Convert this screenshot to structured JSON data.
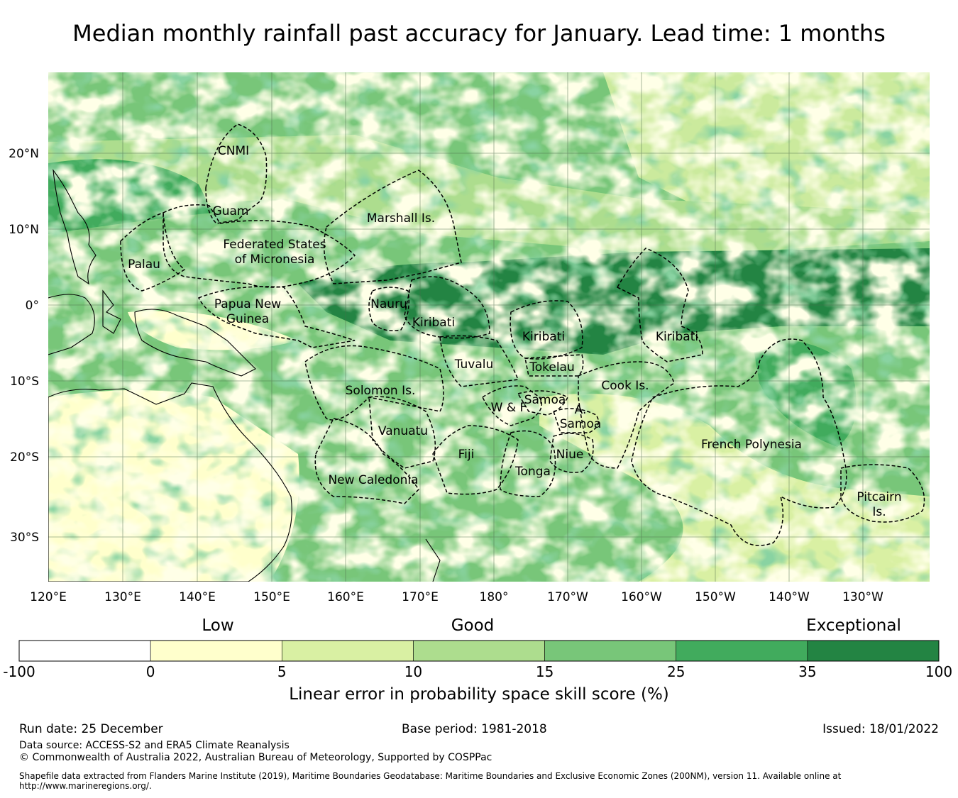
{
  "title": "Median monthly rainfall past accuracy for January. Lead time: 1 months",
  "colors": {
    "ocean_base": "#74c476",
    "bin_0": "#ffffff",
    "bin_1": "#ffffcc",
    "bin_2": "#d9f0a3",
    "bin_3": "#addd8e",
    "bin_4": "#78c679",
    "bin_5": "#41ab5d",
    "bin_6": "#238443",
    "land": "#000000",
    "boundary": "#000000",
    "grid": "#4d6b4d"
  },
  "map": {
    "lat_labels": [
      "20°N",
      "10°N",
      "0°",
      "10°S",
      "20°S",
      "30°S"
    ],
    "lon_labels": [
      "120°E",
      "130°E",
      "140°E",
      "150°E",
      "160°E",
      "170°E",
      "180°",
      "170°W",
      "160°W",
      "150°W",
      "140°W",
      "130°W"
    ],
    "regions": [
      {
        "name": "CNMI"
      },
      {
        "name": "Guam"
      },
      {
        "name": "Marshall Is."
      },
      {
        "name": "Federated States"
      },
      {
        "name": "of Micronesia"
      },
      {
        "name": "Palau"
      },
      {
        "name": "Papua New"
      },
      {
        "name": "Guinea"
      },
      {
        "name": "Nauru"
      },
      {
        "name": "Kiribati"
      },
      {
        "name": "Kiribati"
      },
      {
        "name": "Kiribati"
      },
      {
        "name": "Tuvalu"
      },
      {
        "name": "Tokelau"
      },
      {
        "name": "Solomon Is."
      },
      {
        "name": "Cook Is."
      },
      {
        "name": "Samoa"
      },
      {
        "name": "W & F"
      },
      {
        "name": "A."
      },
      {
        "name": "Samoa"
      },
      {
        "name": "Vanuatu"
      },
      {
        "name": "Fiji"
      },
      {
        "name": "Niue"
      },
      {
        "name": "Tonga"
      },
      {
        "name": "French Polynesia"
      },
      {
        "name": "New Caledonia"
      },
      {
        "name": "Pitcairn"
      },
      {
        "name": "Is."
      }
    ]
  },
  "colorbar": {
    "categories": [
      "Low",
      "Good",
      "Exceptional"
    ],
    "ticks": [
      "-100",
      "0",
      "5",
      "10",
      "15",
      "25",
      "35",
      "100"
    ],
    "title": "Linear error in probability space skill score (%)"
  },
  "footer": {
    "run_date": "Run date: 25 December",
    "base_period": "Base period: 1981-2018",
    "issued": "Issued: 18/01/2022",
    "data_source": "Data source: ACCESS-S2 and ERA5 Climate Reanalysis",
    "copyright": "© Commonwealth of Australia 2022, Australian Bureau of Meteorology, Supported by COSPPac",
    "shapefile": "Shapefile data extracted from Flanders Marine Institute (2019), Maritime Boundaries Geodatabase: Maritime Boundaries and Exclusive Economic Zones (200NM), version 11. Available online at http://www.marineregions.org/."
  }
}
